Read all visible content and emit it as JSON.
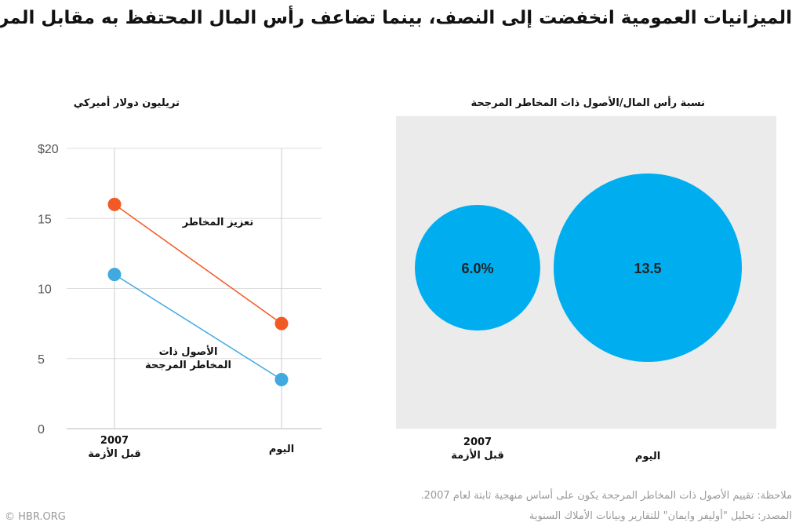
{
  "title": "الميزانيات العمومية انخفضت إلى النصف، بينما تضاعف رأس المال المحتفظ به مقابل المراكز",
  "footer": {
    "note": "ملاحظة: تقييم الأصول ذات المخاطر المرجحة يكون على أساس منهجية ثابتة لعام 2007.",
    "source": "المصدر: تحليل \"أوليفر وايمان\" للتقارير وبيانات الأملاك السنوية",
    "credit": "© HBR.ORG"
  },
  "colors": {
    "orange": "#f15a24",
    "blue": "#3fa9e0",
    "bubble": "#00aeef",
    "panel": "#ebebeb"
  },
  "chart_data": [
    {
      "type": "line",
      "title": "تريليون دولار أميركي",
      "categories": [
        "2007 قبل الأزمة",
        "اليوم"
      ],
      "category_lines": [
        [
          "2007",
          "قبل الأزمة"
        ],
        [
          "اليوم"
        ]
      ],
      "yticks": [
        "$20",
        "15",
        "10",
        "5",
        "0"
      ],
      "ytick_values": [
        20,
        15,
        10,
        5,
        0
      ],
      "ylim": [
        0,
        20
      ],
      "series": [
        {
          "name": "تعزيز المخاطر",
          "values": [
            16,
            7.5
          ],
          "color": "#f15a24"
        },
        {
          "name": "الأصول ذات المخاطر المرجحة",
          "name_lines": [
            "الأصول ذات",
            "المخاطر المرجحة"
          ],
          "values": [
            11,
            3.5
          ],
          "color": "#3fa9e0"
        }
      ]
    },
    {
      "type": "bubble",
      "title": "نسبة رأس المال/الأصول ذات المخاطر المرجحة",
      "categories": [
        "2007 قبل الأزمة",
        "اليوم"
      ],
      "category_lines": [
        [
          "2007",
          "قبل الأزمة"
        ],
        [
          "اليوم"
        ]
      ],
      "values": [
        6.0,
        13.5
      ],
      "labels": [
        "6.0%",
        "13.5"
      ]
    }
  ]
}
